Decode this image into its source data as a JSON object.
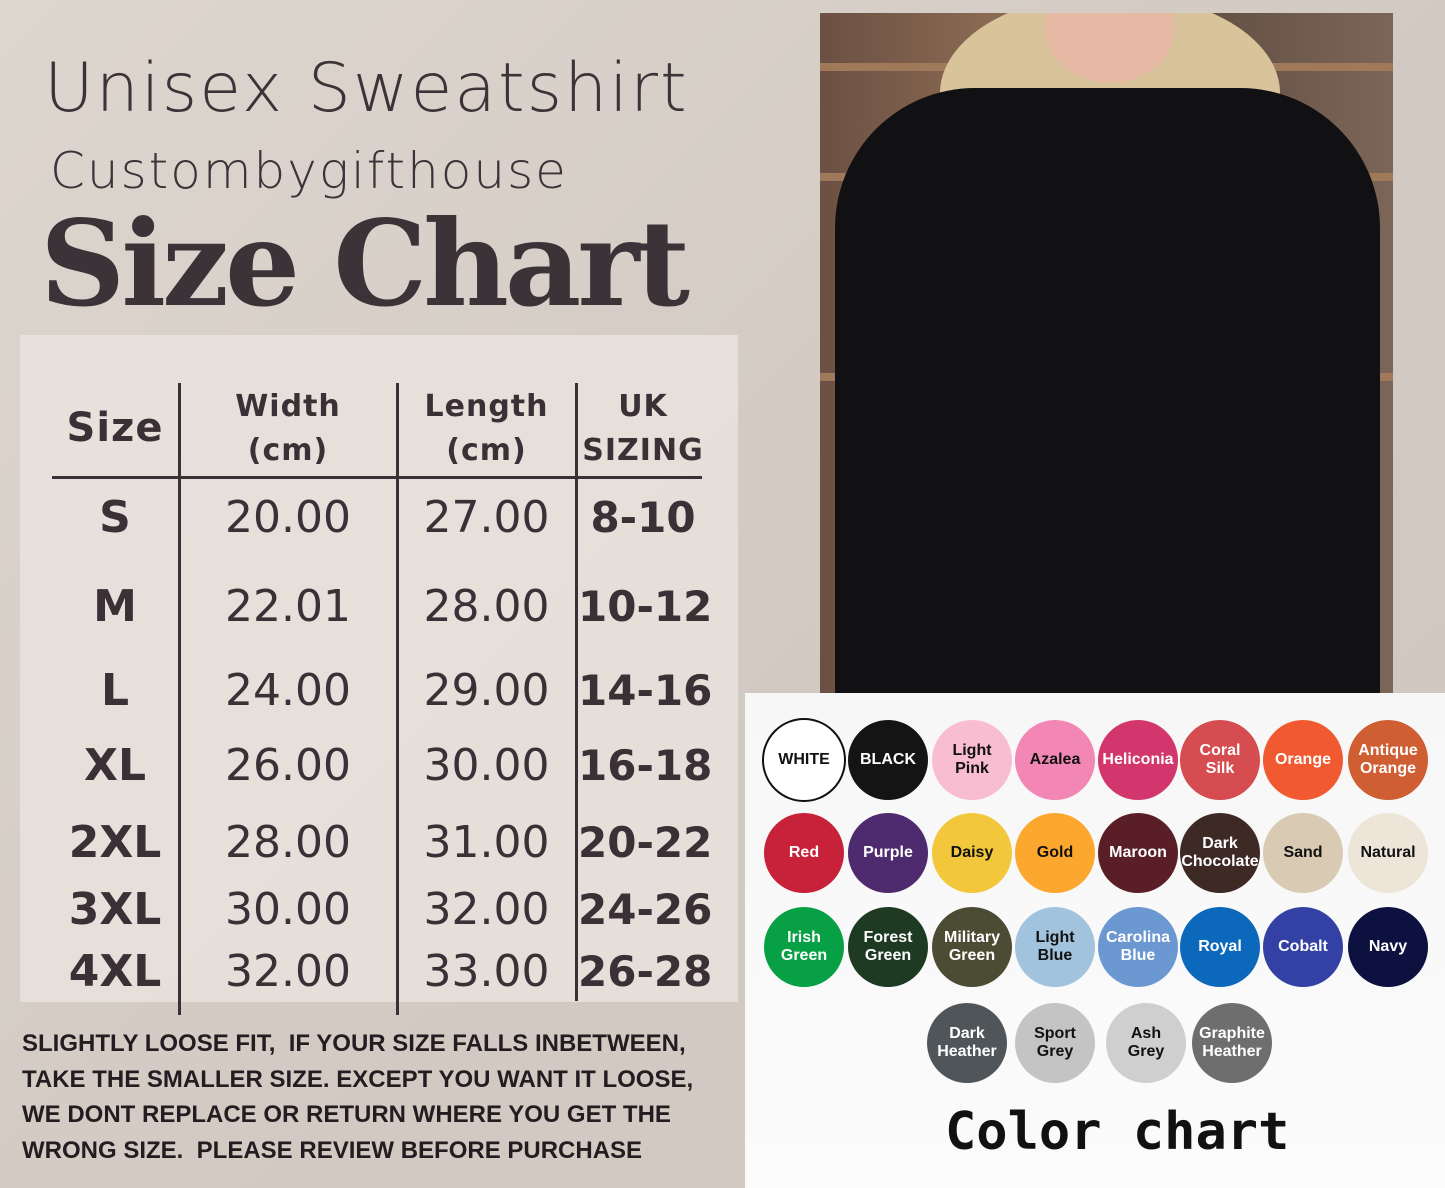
{
  "title": "Unisex Sweatshirt",
  "brand": "Custombygifthouse",
  "heading": "Size Chart",
  "table": {
    "headers": [
      "Size",
      "Width\n(cm)",
      "Length\n(cm)",
      "UK\nSIZING"
    ],
    "rows": [
      [
        "S",
        "20.00",
        "27.00",
        "8-10"
      ],
      [
        "M",
        "22.01",
        "28.00",
        "10-12"
      ],
      [
        "L",
        "24.00",
        "29.00",
        "14-16"
      ],
      [
        "XL",
        "26.00",
        "30.00",
        "16-18"
      ],
      [
        "2XL",
        "28.00",
        "31.00",
        "20-22"
      ],
      [
        "3XL",
        "30.00",
        "32.00",
        "24-26"
      ],
      [
        "4XL",
        "32.00",
        "33.00",
        "26-28"
      ]
    ]
  },
  "note": "SLIGHTLY LOOSE FIT,  IF YOUR SIZE FALLS INBETWEEN,\nTAKE THE SMALLER SIZE. EXCEPT YOU WANT IT LOOSE,\nWE DONT REPLACE OR RETURN WHERE YOU GET THE\nWRONG SIZE.  PLEASE REVIEW BEFORE PURCHASE",
  "color_chart_title": "Color chart",
  "colors": [
    {
      "name": "WHITE",
      "hex": "#ffffff",
      "text": "#111111"
    },
    {
      "name": "BLACK",
      "hex": "#141414",
      "text": "#ffffff"
    },
    {
      "name": "Light\nPink",
      "hex": "#f9bdd1",
      "text": "#111111"
    },
    {
      "name": "Azalea",
      "hex": "#f286b4",
      "text": "#111111"
    },
    {
      "name": "Heliconia",
      "hex": "#d3366c",
      "text": "#ffffff"
    },
    {
      "name": "Coral\nSilk",
      "hex": "#d54c51",
      "text": "#ffffff"
    },
    {
      "name": "Orange",
      "hex": "#f15a31",
      "text": "#ffffff"
    },
    {
      "name": "Antique\nOrange",
      "hex": "#cf5f33",
      "text": "#ffffff"
    },
    {
      "name": "Red",
      "hex": "#c8213a",
      "text": "#ffffff"
    },
    {
      "name": "Purple",
      "hex": "#4e2a6e",
      "text": "#ffffff"
    },
    {
      "name": "Daisy",
      "hex": "#f2c73b",
      "text": "#111111"
    },
    {
      "name": "Gold",
      "hex": "#fca72d",
      "text": "#111111"
    },
    {
      "name": "Maroon",
      "hex": "#5a1f26",
      "text": "#ffffff"
    },
    {
      "name": "Dark\nChocolate",
      "hex": "#3d2a25",
      "text": "#ffffff"
    },
    {
      "name": "Sand",
      "hex": "#d8cab3",
      "text": "#111111"
    },
    {
      "name": "Natural",
      "hex": "#ede5d8",
      "text": "#111111"
    },
    {
      "name": "Irish\nGreen",
      "hex": "#08a045",
      "text": "#ffffff"
    },
    {
      "name": "Forest\nGreen",
      "hex": "#1f3a22",
      "text": "#ffffff"
    },
    {
      "name": "Military\nGreen",
      "hex": "#4c4c35",
      "text": "#ffffff"
    },
    {
      "name": "Light\nBlue",
      "hex": "#a2c3de",
      "text": "#111111"
    },
    {
      "name": "Carolina\nBlue",
      "hex": "#6c98d2",
      "text": "#ffffff"
    },
    {
      "name": "Royal",
      "hex": "#0c68ba",
      "text": "#ffffff"
    },
    {
      "name": "Cobalt",
      "hex": "#3441a4",
      "text": "#ffffff"
    },
    {
      "name": "Navy",
      "hex": "#0d1140",
      "text": "#ffffff"
    },
    {
      "name": "Dark\nHeather",
      "hex": "#50555a",
      "text": "#ffffff"
    },
    {
      "name": "Sport\nGrey",
      "hex": "#c4c4c4",
      "text": "#111111"
    },
    {
      "name": "Ash\nGrey",
      "hex": "#cfcfcf",
      "text": "#111111"
    },
    {
      "name": "Graphite\nHeather",
      "hex": "#6e6e6e",
      "text": "#ffffff"
    }
  ]
}
